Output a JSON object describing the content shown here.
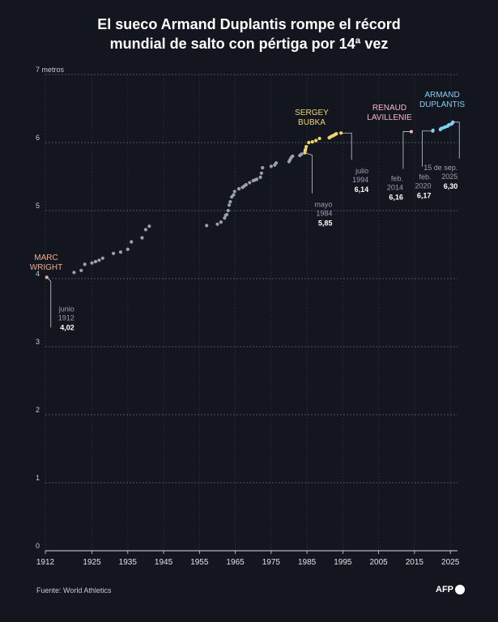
{
  "title": {
    "line1": "El sueco Armand Duplantis rompe el récord",
    "line2": "mundial de salto con pértiga por 14ª vez"
  },
  "source": "Fuente: World Athletics",
  "logo": "AFP",
  "colors": {
    "background": "#13161f",
    "grey": "#9aa0ad",
    "wright": "#f2a98a",
    "bubka": "#f2d36b",
    "lavillenie": "#f2b8c6",
    "duplantis": "#7fcff0"
  },
  "chart_data": {
    "type": "scatter",
    "xlim": [
      1912,
      2027
    ],
    "ylim": [
      0,
      7
    ],
    "ylabel": "7 metros",
    "x_ticks": [
      "1912",
      "1925",
      "1935",
      "1945",
      "1955",
      "1965",
      "1975",
      "1985",
      "1995",
      "2005",
      "2015",
      "2025"
    ],
    "x_tick_values": [
      1912,
      1925,
      1935,
      1945,
      1955,
      1965,
      1975,
      1985,
      1995,
      2005,
      2015,
      2025
    ],
    "y_ticks": [
      "0",
      "1",
      "2",
      "3",
      "4",
      "5",
      "6",
      "7 metros"
    ],
    "y_tick_values": [
      0,
      1,
      2,
      3,
      4,
      5,
      6,
      7
    ],
    "grid": true,
    "series": [
      {
        "key": "wright",
        "color": "#f2a98a",
        "points": [
          [
            1912.4,
            4.02
          ]
        ]
      },
      {
        "key": "others",
        "color": "#9aa0ad",
        "points": [
          [
            1920,
            4.09
          ],
          [
            1922,
            4.12
          ],
          [
            1923,
            4.21
          ],
          [
            1925,
            4.23
          ],
          [
            1926,
            4.25
          ],
          [
            1927,
            4.27
          ],
          [
            1928,
            4.3
          ],
          [
            1931,
            4.37
          ],
          [
            1933,
            4.39
          ],
          [
            1935,
            4.43
          ],
          [
            1936,
            4.54
          ],
          [
            1939,
            4.6
          ],
          [
            1940,
            4.72
          ],
          [
            1941,
            4.77
          ],
          [
            1957,
            4.78
          ],
          [
            1960,
            4.8
          ],
          [
            1961,
            4.83
          ],
          [
            1962,
            4.89
          ],
          [
            1962.3,
            4.93
          ],
          [
            1962.6,
            4.94
          ],
          [
            1963,
            5.0
          ],
          [
            1963.3,
            5.08
          ],
          [
            1963.6,
            5.13
          ],
          [
            1964,
            5.2
          ],
          [
            1964.5,
            5.23
          ],
          [
            1964.8,
            5.28
          ],
          [
            1966,
            5.32
          ],
          [
            1967,
            5.34
          ],
          [
            1967.5,
            5.36
          ],
          [
            1968,
            5.38
          ],
          [
            1969,
            5.41
          ],
          [
            1970,
            5.44
          ],
          [
            1970.5,
            5.45
          ],
          [
            1971,
            5.46
          ],
          [
            1972,
            5.49
          ],
          [
            1972.3,
            5.55
          ],
          [
            1972.6,
            5.63
          ],
          [
            1975,
            5.65
          ],
          [
            1976,
            5.67
          ],
          [
            1976.4,
            5.7
          ],
          [
            1980,
            5.72
          ],
          [
            1980.3,
            5.75
          ],
          [
            1980.6,
            5.78
          ],
          [
            1981,
            5.8
          ],
          [
            1983,
            5.81
          ],
          [
            1983.5,
            5.83
          ]
        ]
      },
      {
        "key": "bubka",
        "color": "#f2d36b",
        "points": [
          [
            1984.4,
            5.85
          ],
          [
            1984.5,
            5.88
          ],
          [
            1984.6,
            5.9
          ],
          [
            1984.8,
            5.94
          ],
          [
            1985.5,
            6.0
          ],
          [
            1986.5,
            6.01
          ],
          [
            1987.5,
            6.03
          ],
          [
            1988.5,
            6.06
          ],
          [
            1991.2,
            6.07
          ],
          [
            1991.5,
            6.08
          ],
          [
            1991.8,
            6.09
          ],
          [
            1992.2,
            6.1
          ],
          [
            1992.6,
            6.11
          ],
          [
            1992.9,
            6.12
          ],
          [
            1993.2,
            6.13
          ],
          [
            1994.5,
            6.14
          ]
        ]
      },
      {
        "key": "lavillenie",
        "color": "#f2b8c6",
        "points": [
          [
            2014.1,
            6.16
          ]
        ]
      },
      {
        "key": "duplantis",
        "color": "#7fcff0",
        "points": [
          [
            2020.1,
            6.17
          ],
          [
            2020.15,
            6.18
          ],
          [
            2022.2,
            6.19
          ],
          [
            2022.3,
            6.2
          ],
          [
            2022.6,
            6.21
          ],
          [
            2023.2,
            6.22
          ],
          [
            2023.6,
            6.23
          ],
          [
            2024.2,
            6.24
          ],
          [
            2024.4,
            6.25
          ],
          [
            2024.6,
            6.26
          ],
          [
            2025.2,
            6.27
          ],
          [
            2025.5,
            6.28
          ],
          [
            2025.6,
            6.29
          ],
          [
            2025.7,
            6.3
          ]
        ]
      }
    ],
    "athletes": {
      "wright": {
        "lines": [
          "MARC",
          "WRIGHT"
        ],
        "color": "#f2a98a"
      },
      "bubka": {
        "lines": [
          "SERGEY",
          "BUBKA"
        ],
        "color": "#f2d36b"
      },
      "lavillenie": {
        "lines": [
          "RENAUD",
          "LAVILLENIE"
        ],
        "color": "#f2b8c6"
      },
      "duplantis": {
        "lines": [
          "ARMAND",
          "DUPLANTIS"
        ],
        "color": "#7fcff0"
      }
    },
    "annotations": [
      {
        "key": "a1912",
        "x": 1912.4,
        "y": 4.02,
        "date": [
          "junio",
          "1912"
        ],
        "value": "4,02"
      },
      {
        "key": "a1984",
        "x": 1984.4,
        "y": 5.85,
        "date": [
          "mayo",
          "1984"
        ],
        "value": "5,85"
      },
      {
        "key": "a1994",
        "x": 1994.5,
        "y": 6.14,
        "date": [
          "julio",
          "1994"
        ],
        "value": "6,14"
      },
      {
        "key": "a2014",
        "x": 2014.1,
        "y": 6.16,
        "date": [
          "feb.",
          "2014"
        ],
        "value": "6,16"
      },
      {
        "key": "a2020",
        "x": 2020.1,
        "y": 6.17,
        "date": [
          "feb.",
          "2020"
        ],
        "value": "6,17"
      },
      {
        "key": "a2025",
        "x": 2025.7,
        "y": 6.3,
        "date": [
          "15 de sep.",
          "2025"
        ],
        "value": "6,30"
      }
    ]
  }
}
